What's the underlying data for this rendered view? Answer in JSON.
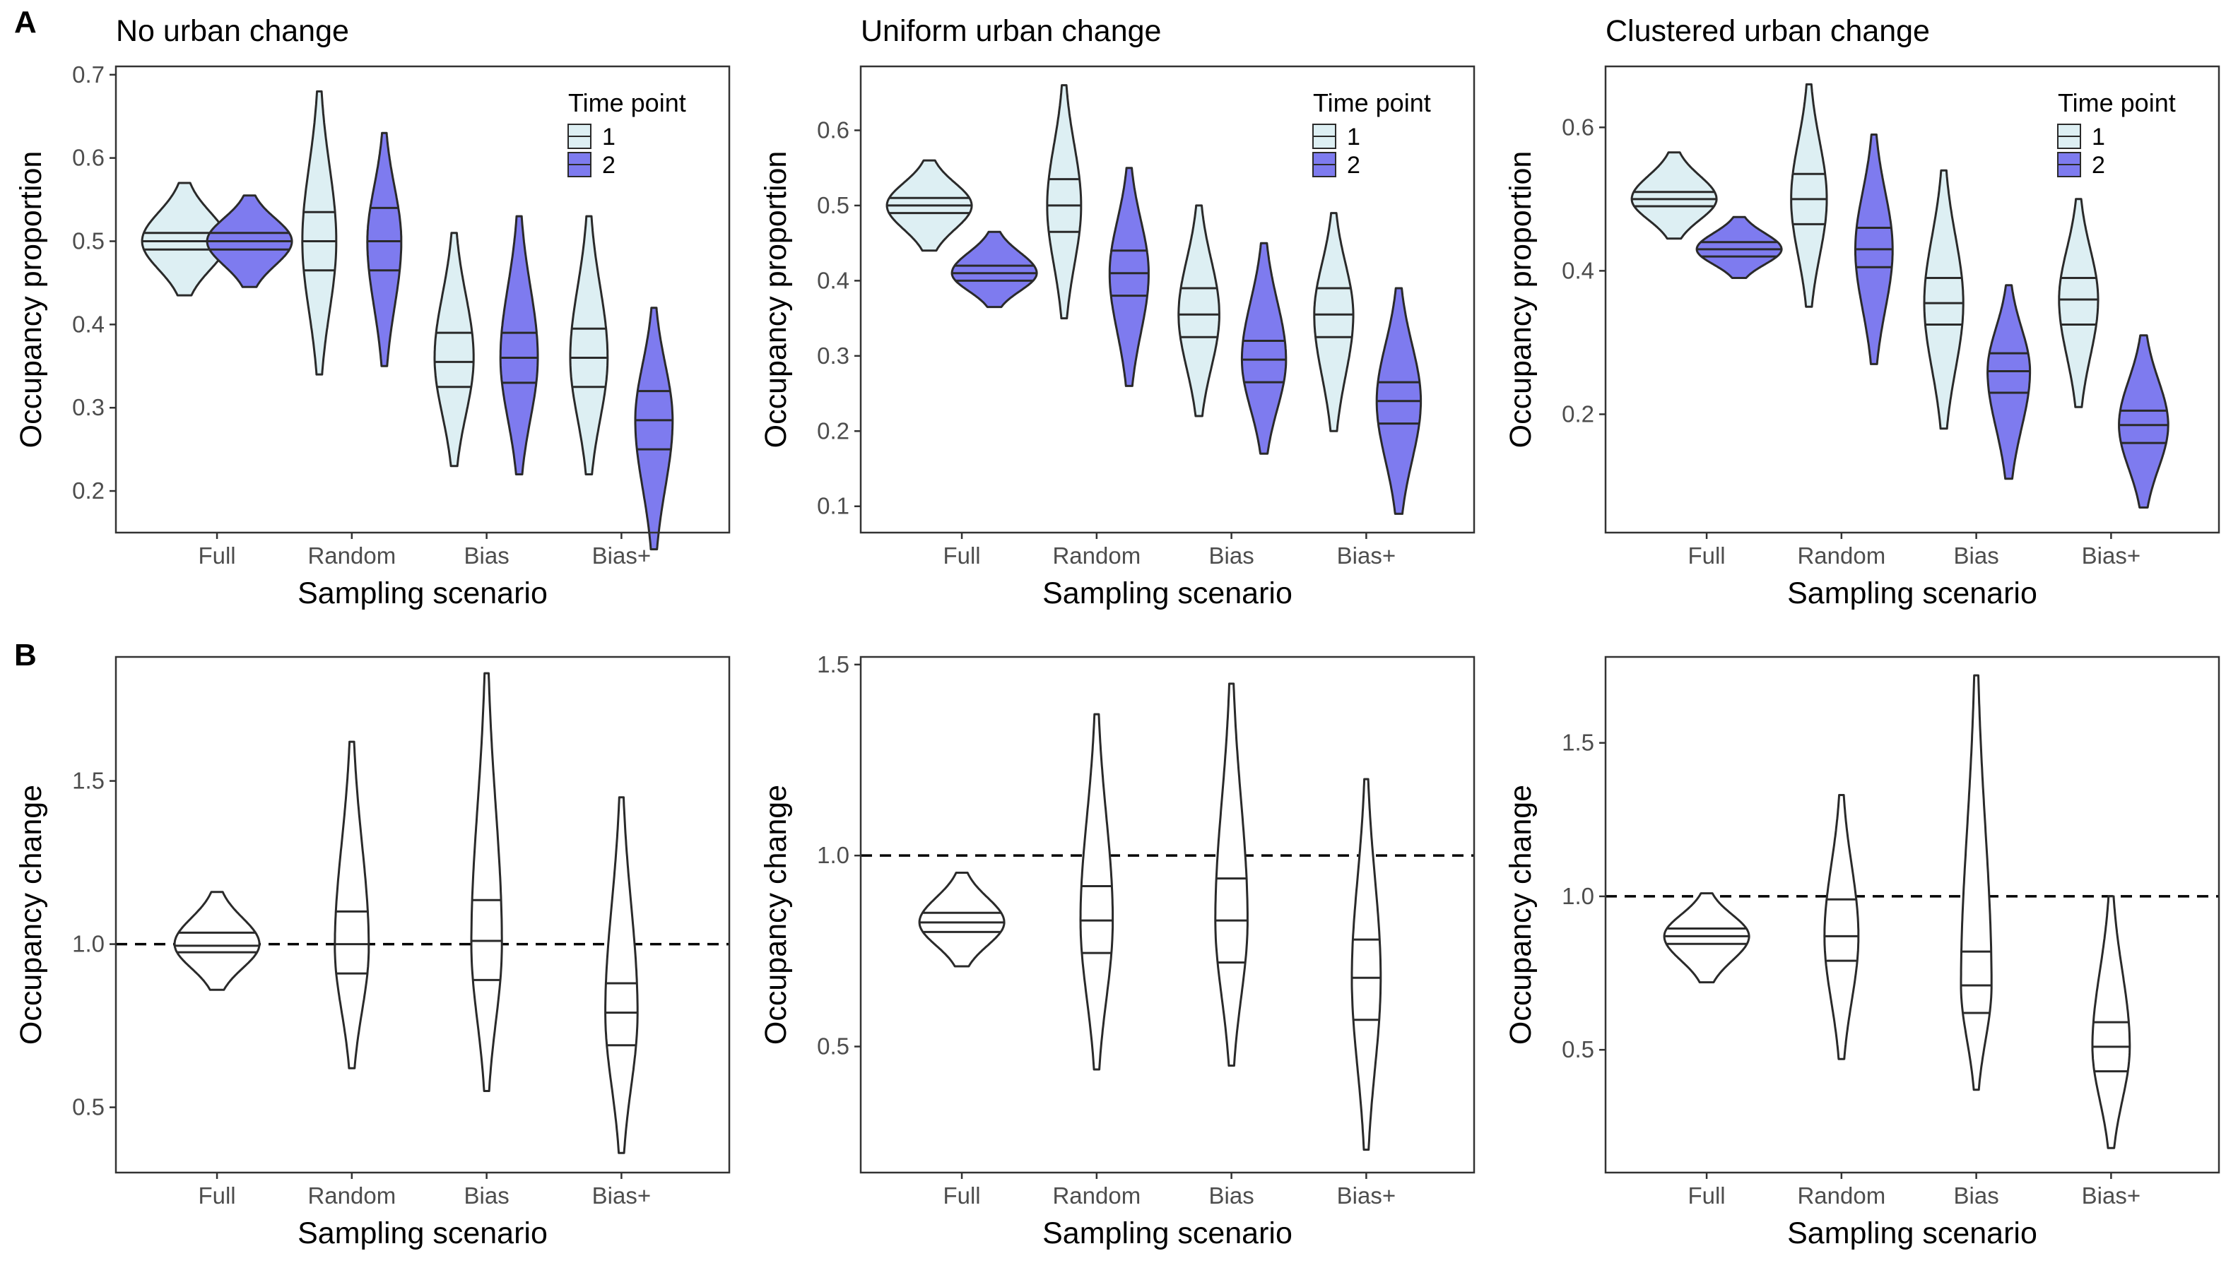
{
  "figure": {
    "panel_letters": [
      "A",
      "B"
    ],
    "legend": {
      "title": "Time point",
      "items": [
        {
          "label": "1",
          "color": "#DDEFF3"
        },
        {
          "label": "2",
          "color": "#7E7BEF"
        }
      ]
    },
    "colors": {
      "time1": "#DDEFF3",
      "time2": "#7E7BEF",
      "change": "#FFFFFF",
      "outline": "#2A2A2A"
    }
  },
  "chart_data": [
    {
      "id": "A1",
      "row": "A",
      "type": "violin",
      "title": "No urban change",
      "xlabel": "Sampling scenario",
      "ylabel": "Occupancy proportion",
      "categories": [
        "Full",
        "Random",
        "Bias",
        "Bias+"
      ],
      "ylim": [
        0.15,
        0.71
      ],
      "yticks": [
        0.2,
        0.3,
        0.4,
        0.5,
        0.6,
        0.7
      ],
      "yticklabels": [
        "0.2",
        "0.3",
        "0.4",
        "0.5",
        "0.6",
        "0.7"
      ],
      "legend": true,
      "series": [
        {
          "name": "1",
          "color": "#DDEFF3",
          "values": [
            {
              "category": "Full",
              "min": 0.435,
              "max": 0.57,
              "q1": 0.49,
              "median": 0.5,
              "q3": 0.51,
              "peak": 0.5,
              "width": 1.0
            },
            {
              "category": "Random",
              "min": 0.34,
              "max": 0.68,
              "q1": 0.465,
              "median": 0.5,
              "q3": 0.535,
              "peak": 0.5,
              "width": 0.4
            },
            {
              "category": "Bias",
              "min": 0.23,
              "max": 0.51,
              "q1": 0.325,
              "median": 0.355,
              "q3": 0.39,
              "peak": 0.36,
              "width": 0.46
            },
            {
              "category": "Bias+",
              "min": 0.22,
              "max": 0.53,
              "q1": 0.325,
              "median": 0.36,
              "q3": 0.395,
              "peak": 0.36,
              "width": 0.44
            }
          ]
        },
        {
          "name": "2",
          "color": "#7E7BEF",
          "values": [
            {
              "category": "Full",
              "min": 0.445,
              "max": 0.555,
              "q1": 0.49,
              "median": 0.5,
              "q3": 0.51,
              "peak": 0.5,
              "width": 1.0
            },
            {
              "category": "Random",
              "min": 0.35,
              "max": 0.63,
              "q1": 0.465,
              "median": 0.5,
              "q3": 0.54,
              "peak": 0.5,
              "width": 0.4
            },
            {
              "category": "Bias",
              "min": 0.22,
              "max": 0.53,
              "q1": 0.33,
              "median": 0.36,
              "q3": 0.39,
              "peak": 0.36,
              "width": 0.44
            },
            {
              "category": "Bias+",
              "min": 0.13,
              "max": 0.42,
              "q1": 0.25,
              "median": 0.285,
              "q3": 0.32,
              "peak": 0.285,
              "width": 0.44
            }
          ]
        }
      ]
    },
    {
      "id": "A2",
      "row": "A",
      "type": "violin",
      "title": "Uniform urban change",
      "xlabel": "Sampling scenario",
      "ylabel": "Occupancy proportion",
      "categories": [
        "Full",
        "Random",
        "Bias",
        "Bias+"
      ],
      "ylim": [
        0.065,
        0.685
      ],
      "yticks": [
        0.1,
        0.2,
        0.3,
        0.4,
        0.5,
        0.6
      ],
      "yticklabels": [
        "0.1",
        "0.2",
        "0.3",
        "0.4",
        "0.5",
        "0.6"
      ],
      "legend": true,
      "series": [
        {
          "name": "1",
          "color": "#DDEFF3",
          "values": [
            {
              "category": "Full",
              "min": 0.44,
              "max": 0.56,
              "q1": 0.49,
              "median": 0.5,
              "q3": 0.51,
              "peak": 0.5,
              "width": 1.0
            },
            {
              "category": "Random",
              "min": 0.35,
              "max": 0.66,
              "q1": 0.465,
              "median": 0.5,
              "q3": 0.535,
              "peak": 0.5,
              "width": 0.4
            },
            {
              "category": "Bias",
              "min": 0.22,
              "max": 0.5,
              "q1": 0.325,
              "median": 0.355,
              "q3": 0.39,
              "peak": 0.355,
              "width": 0.48
            },
            {
              "category": "Bias+",
              "min": 0.2,
              "max": 0.49,
              "q1": 0.325,
              "median": 0.355,
              "q3": 0.39,
              "peak": 0.355,
              "width": 0.46
            }
          ]
        },
        {
          "name": "2",
          "color": "#7E7BEF",
          "values": [
            {
              "category": "Full",
              "min": 0.365,
              "max": 0.465,
              "q1": 0.4,
              "median": 0.41,
              "q3": 0.42,
              "peak": 0.41,
              "width": 1.0
            },
            {
              "category": "Random",
              "min": 0.26,
              "max": 0.55,
              "q1": 0.38,
              "median": 0.41,
              "q3": 0.44,
              "peak": 0.41,
              "width": 0.46
            },
            {
              "category": "Bias",
              "min": 0.17,
              "max": 0.45,
              "q1": 0.265,
              "median": 0.295,
              "q3": 0.32,
              "peak": 0.295,
              "width": 0.52
            },
            {
              "category": "Bias+",
              "min": 0.09,
              "max": 0.39,
              "q1": 0.21,
              "median": 0.24,
              "q3": 0.265,
              "peak": 0.24,
              "width": 0.52
            }
          ]
        }
      ]
    },
    {
      "id": "A3",
      "row": "A",
      "type": "violin",
      "title": "Clustered urban change",
      "xlabel": "Sampling scenario",
      "ylabel": "Occupancy proportion",
      "categories": [
        "Full",
        "Random",
        "Bias",
        "Bias+"
      ],
      "ylim": [
        0.035,
        0.685
      ],
      "yticks": [
        0.2,
        0.4,
        0.6
      ],
      "yticklabels": [
        "0.2",
        "0.4",
        "0.6"
      ],
      "legend": true,
      "series": [
        {
          "name": "1",
          "color": "#DDEFF3",
          "values": [
            {
              "category": "Full",
              "min": 0.445,
              "max": 0.565,
              "q1": 0.49,
              "median": 0.5,
              "q3": 0.51,
              "peak": 0.5,
              "width": 1.0
            },
            {
              "category": "Random",
              "min": 0.35,
              "max": 0.66,
              "q1": 0.465,
              "median": 0.5,
              "q3": 0.535,
              "peak": 0.5,
              "width": 0.42
            },
            {
              "category": "Bias",
              "min": 0.18,
              "max": 0.54,
              "q1": 0.325,
              "median": 0.355,
              "q3": 0.39,
              "peak": 0.355,
              "width": 0.46
            },
            {
              "category": "Bias+",
              "min": 0.21,
              "max": 0.5,
              "q1": 0.325,
              "median": 0.36,
              "q3": 0.39,
              "peak": 0.36,
              "width": 0.46
            }
          ]
        },
        {
          "name": "2",
          "color": "#7E7BEF",
          "values": [
            {
              "category": "Full",
              "min": 0.39,
              "max": 0.475,
              "q1": 0.42,
              "median": 0.43,
              "q3": 0.44,
              "peak": 0.43,
              "width": 1.0
            },
            {
              "category": "Random",
              "min": 0.27,
              "max": 0.59,
              "q1": 0.405,
              "median": 0.43,
              "q3": 0.46,
              "peak": 0.43,
              "width": 0.44
            },
            {
              "category": "Bias",
              "min": 0.11,
              "max": 0.38,
              "q1": 0.23,
              "median": 0.26,
              "q3": 0.285,
              "peak": 0.26,
              "width": 0.5
            },
            {
              "category": "Bias+",
              "min": 0.07,
              "max": 0.31,
              "q1": 0.16,
              "median": 0.185,
              "q3": 0.205,
              "peak": 0.185,
              "width": 0.58
            }
          ]
        }
      ]
    },
    {
      "id": "B1",
      "row": "B",
      "type": "violin",
      "title": "",
      "xlabel": "Sampling scenario",
      "ylabel": "Occupancy change",
      "categories": [
        "Full",
        "Random",
        "Bias",
        "Bias+"
      ],
      "ylim": [
        0.3,
        1.88
      ],
      "yticks": [
        0.5,
        1.0,
        1.5
      ],
      "yticklabels": [
        "0.5",
        "1.0",
        "1.5"
      ],
      "reference_line": 1.0,
      "legend": false,
      "series": [
        {
          "name": "",
          "color": "#FFFFFF",
          "values": [
            {
              "category": "Full",
              "min": 0.86,
              "max": 1.16,
              "q1": 0.975,
              "median": 0.995,
              "q3": 1.035,
              "peak": 1.0,
              "width": 1.0
            },
            {
              "category": "Random",
              "min": 0.62,
              "max": 1.62,
              "q1": 0.91,
              "median": 1.0,
              "q3": 1.1,
              "peak": 0.99,
              "width": 0.4
            },
            {
              "category": "Bias",
              "min": 0.55,
              "max": 1.83,
              "q1": 0.89,
              "median": 1.01,
              "q3": 1.135,
              "peak": 1.0,
              "width": 0.36
            },
            {
              "category": "Bias+",
              "min": 0.36,
              "max": 1.45,
              "q1": 0.69,
              "median": 0.79,
              "q3": 0.88,
              "peak": 0.79,
              "width": 0.38
            }
          ]
        }
      ]
    },
    {
      "id": "B2",
      "row": "B",
      "type": "violin",
      "title": "",
      "xlabel": "Sampling scenario",
      "ylabel": "Occupancy change",
      "categories": [
        "Full",
        "Random",
        "Bias",
        "Bias+"
      ],
      "ylim": [
        0.17,
        1.52
      ],
      "yticks": [
        0.5,
        1.0,
        1.5
      ],
      "yticklabels": [
        "0.5",
        "1.0",
        "1.5"
      ],
      "reference_line": 1.0,
      "legend": false,
      "series": [
        {
          "name": "",
          "color": "#FFFFFF",
          "values": [
            {
              "category": "Full",
              "min": 0.71,
              "max": 0.955,
              "q1": 0.8,
              "median": 0.825,
              "q3": 0.85,
              "peak": 0.825,
              "width": 1.0
            },
            {
              "category": "Random",
              "min": 0.44,
              "max": 1.37,
              "q1": 0.745,
              "median": 0.83,
              "q3": 0.92,
              "peak": 0.83,
              "width": 0.38
            },
            {
              "category": "Bias",
              "min": 0.45,
              "max": 1.45,
              "q1": 0.72,
              "median": 0.83,
              "q3": 0.94,
              "peak": 0.83,
              "width": 0.38
            },
            {
              "category": "Bias+",
              "min": 0.23,
              "max": 1.2,
              "q1": 0.57,
              "median": 0.68,
              "q3": 0.78,
              "peak": 0.68,
              "width": 0.34
            }
          ]
        }
      ]
    },
    {
      "id": "B3",
      "row": "B",
      "type": "violin",
      "title": "",
      "xlabel": "Sampling scenario",
      "ylabel": "Occupancy change",
      "categories": [
        "Full",
        "Random",
        "Bias",
        "Bias+"
      ],
      "ylim": [
        0.1,
        1.78
      ],
      "yticks": [
        0.5,
        1.0,
        1.5
      ],
      "yticklabels": [
        "0.5",
        "1.0",
        "1.5"
      ],
      "reference_line": 1.0,
      "legend": false,
      "series": [
        {
          "name": "",
          "color": "#FFFFFF",
          "values": [
            {
              "category": "Full",
              "min": 0.72,
              "max": 1.01,
              "q1": 0.845,
              "median": 0.87,
              "q3": 0.895,
              "peak": 0.87,
              "width": 1.0
            },
            {
              "category": "Random",
              "min": 0.47,
              "max": 1.33,
              "q1": 0.79,
              "median": 0.87,
              "q3": 0.99,
              "peak": 0.87,
              "width": 0.4
            },
            {
              "category": "Bias",
              "min": 0.37,
              "max": 1.72,
              "q1": 0.62,
              "median": 0.71,
              "q3": 0.82,
              "peak": 0.71,
              "width": 0.36
            },
            {
              "category": "Bias+",
              "min": 0.18,
              "max": 1.0,
              "q1": 0.43,
              "median": 0.51,
              "q3": 0.59,
              "peak": 0.51,
              "width": 0.44
            }
          ]
        }
      ]
    }
  ]
}
